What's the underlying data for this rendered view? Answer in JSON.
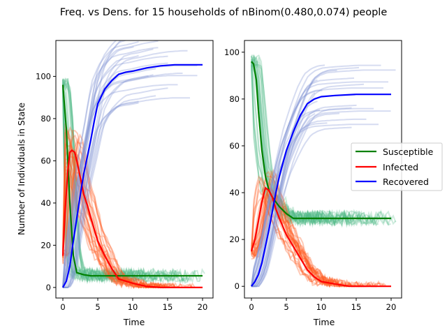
{
  "title": "Freq. vs Dens. for 15 households of nBinom(0.480,0.074) people",
  "colors": {
    "susceptible": "#008000",
    "infected": "#ff0000",
    "recovered": "#0000ff",
    "susceptible_light": "#52b98a",
    "infected_light": "#ff5a1f",
    "recovered_light": "#7f93d2"
  },
  "legend": {
    "placement": "right",
    "entries": [
      "Susceptible",
      "Infected",
      "Recovered"
    ]
  },
  "chart_data": [
    {
      "type": "line",
      "panel": "left",
      "xlabel": "Time",
      "ylabel": "Number of Individuals in State",
      "xlim": [
        -1,
        21.5
      ],
      "ylim": [
        -5,
        117
      ],
      "xticks": [
        0,
        5,
        10,
        15,
        20
      ],
      "yticks": [
        0,
        20,
        40,
        60,
        80,
        100
      ],
      "grid": false,
      "series": [
        {
          "name": "Susceptible",
          "x": [
            0,
            0.5,
            1,
            1.5,
            2,
            2.5,
            3,
            4,
            6,
            10,
            20
          ],
          "y": [
            96,
            75,
            40,
            15,
            7,
            6.5,
            6,
            5.5,
            5.5,
            5.5,
            5.5
          ]
        },
        {
          "name": "Infected",
          "x": [
            0,
            0.3,
            0.7,
            1,
            1.3,
            1.7,
            2,
            2.5,
            3,
            3.5,
            4,
            5,
            6,
            7,
            8,
            9,
            10,
            12,
            14,
            20
          ],
          "y": [
            15,
            35,
            55,
            64,
            65,
            64,
            60,
            52,
            44,
            39,
            33,
            22,
            15,
            9,
            4,
            3,
            2,
            0.5,
            0,
            0
          ]
        },
        {
          "name": "Recovered",
          "x": [
            0,
            0.5,
            1,
            1.5,
            2,
            2.5,
            3,
            3.5,
            4,
            4.5,
            5,
            6,
            7,
            8,
            9,
            10,
            12,
            14,
            16,
            20
          ],
          "y": [
            0,
            3,
            10,
            22,
            33,
            44,
            54,
            62,
            70,
            79,
            87,
            94,
            98,
            101,
            102,
            102.5,
            104,
            105,
            105.5,
            105.5
          ]
        }
      ]
    },
    {
      "type": "line",
      "panel": "right",
      "xlabel": "Time",
      "ylabel": "",
      "xlim": [
        -1,
        21.5
      ],
      "ylim": [
        -5,
        105
      ],
      "xticks": [
        0,
        5,
        10,
        15,
        20
      ],
      "yticks": [
        0,
        20,
        40,
        60,
        80,
        100
      ],
      "grid": false,
      "series": [
        {
          "name": "Susceptible",
          "x": [
            0,
            0.3,
            0.7,
            1,
            1.5,
            2,
            2.5,
            3,
            3.5,
            4,
            5,
            6,
            8,
            10,
            20
          ],
          "y": [
            96,
            95,
            88,
            75,
            58,
            47,
            41,
            38,
            36,
            34,
            31,
            29,
            29,
            29,
            29
          ]
        },
        {
          "name": "Infected",
          "x": [
            0,
            0.5,
            1,
            1.5,
            2,
            2.5,
            3,
            3.5,
            4,
            5,
            6,
            7,
            8,
            9,
            10,
            12,
            14,
            20
          ],
          "y": [
            15,
            20,
            28,
            36,
            42,
            41,
            38,
            33,
            29,
            22,
            17,
            12,
            7,
            4,
            2,
            1,
            0,
            0
          ]
        },
        {
          "name": "Recovered",
          "x": [
            0,
            0.5,
            1,
            1.5,
            2,
            2.5,
            3,
            3.5,
            4,
            5,
            6,
            7,
            8,
            9,
            10,
            12,
            15,
            20
          ],
          "y": [
            0,
            2,
            5,
            10,
            17,
            24,
            32,
            40,
            47,
            58,
            66,
            73,
            78,
            80,
            81,
            81.5,
            82,
            82
          ]
        }
      ]
    }
  ]
}
